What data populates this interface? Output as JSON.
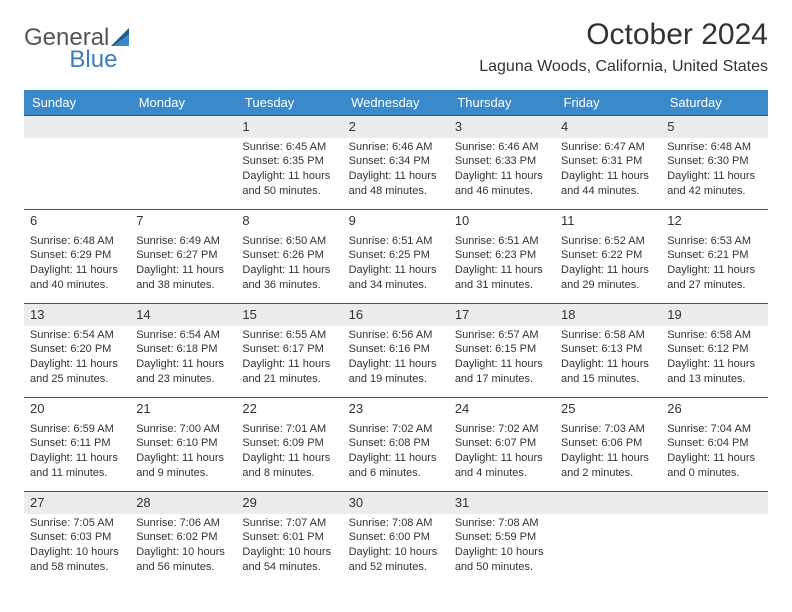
{
  "brand": {
    "left": "General",
    "right": "Blue"
  },
  "title": "October 2024",
  "location": "Laguna Woods, California, United States",
  "colors": {
    "header_bg": "#3a8acb",
    "header_text": "#ffffff",
    "rule": "#1f5b8c",
    "shade": "#ececec",
    "text": "#333333",
    "brand_blue": "#3a7cc2",
    "brand_gray": "#555555",
    "page_bg": "#ffffff"
  },
  "dayHeaders": [
    "Sunday",
    "Monday",
    "Tuesday",
    "Wednesday",
    "Thursday",
    "Friday",
    "Saturday"
  ],
  "firstWeekday": 2,
  "daysInMonth": 31,
  "days": {
    "1": {
      "sunrise": "6:45 AM",
      "sunset": "6:35 PM",
      "daylight": "11 hours and 50 minutes."
    },
    "2": {
      "sunrise": "6:46 AM",
      "sunset": "6:34 PM",
      "daylight": "11 hours and 48 minutes."
    },
    "3": {
      "sunrise": "6:46 AM",
      "sunset": "6:33 PM",
      "daylight": "11 hours and 46 minutes."
    },
    "4": {
      "sunrise": "6:47 AM",
      "sunset": "6:31 PM",
      "daylight": "11 hours and 44 minutes."
    },
    "5": {
      "sunrise": "6:48 AM",
      "sunset": "6:30 PM",
      "daylight": "11 hours and 42 minutes."
    },
    "6": {
      "sunrise": "6:48 AM",
      "sunset": "6:29 PM",
      "daylight": "11 hours and 40 minutes."
    },
    "7": {
      "sunrise": "6:49 AM",
      "sunset": "6:27 PM",
      "daylight": "11 hours and 38 minutes."
    },
    "8": {
      "sunrise": "6:50 AM",
      "sunset": "6:26 PM",
      "daylight": "11 hours and 36 minutes."
    },
    "9": {
      "sunrise": "6:51 AM",
      "sunset": "6:25 PM",
      "daylight": "11 hours and 34 minutes."
    },
    "10": {
      "sunrise": "6:51 AM",
      "sunset": "6:23 PM",
      "daylight": "11 hours and 31 minutes."
    },
    "11": {
      "sunrise": "6:52 AM",
      "sunset": "6:22 PM",
      "daylight": "11 hours and 29 minutes."
    },
    "12": {
      "sunrise": "6:53 AM",
      "sunset": "6:21 PM",
      "daylight": "11 hours and 27 minutes."
    },
    "13": {
      "sunrise": "6:54 AM",
      "sunset": "6:20 PM",
      "daylight": "11 hours and 25 minutes."
    },
    "14": {
      "sunrise": "6:54 AM",
      "sunset": "6:18 PM",
      "daylight": "11 hours and 23 minutes."
    },
    "15": {
      "sunrise": "6:55 AM",
      "sunset": "6:17 PM",
      "daylight": "11 hours and 21 minutes."
    },
    "16": {
      "sunrise": "6:56 AM",
      "sunset": "6:16 PM",
      "daylight": "11 hours and 19 minutes."
    },
    "17": {
      "sunrise": "6:57 AM",
      "sunset": "6:15 PM",
      "daylight": "11 hours and 17 minutes."
    },
    "18": {
      "sunrise": "6:58 AM",
      "sunset": "6:13 PM",
      "daylight": "11 hours and 15 minutes."
    },
    "19": {
      "sunrise": "6:58 AM",
      "sunset": "6:12 PM",
      "daylight": "11 hours and 13 minutes."
    },
    "20": {
      "sunrise": "6:59 AM",
      "sunset": "6:11 PM",
      "daylight": "11 hours and 11 minutes."
    },
    "21": {
      "sunrise": "7:00 AM",
      "sunset": "6:10 PM",
      "daylight": "11 hours and 9 minutes."
    },
    "22": {
      "sunrise": "7:01 AM",
      "sunset": "6:09 PM",
      "daylight": "11 hours and 8 minutes."
    },
    "23": {
      "sunrise": "7:02 AM",
      "sunset": "6:08 PM",
      "daylight": "11 hours and 6 minutes."
    },
    "24": {
      "sunrise": "7:02 AM",
      "sunset": "6:07 PM",
      "daylight": "11 hours and 4 minutes."
    },
    "25": {
      "sunrise": "7:03 AM",
      "sunset": "6:06 PM",
      "daylight": "11 hours and 2 minutes."
    },
    "26": {
      "sunrise": "7:04 AM",
      "sunset": "6:04 PM",
      "daylight": "11 hours and 0 minutes."
    },
    "27": {
      "sunrise": "7:05 AM",
      "sunset": "6:03 PM",
      "daylight": "10 hours and 58 minutes."
    },
    "28": {
      "sunrise": "7:06 AM",
      "sunset": "6:02 PM",
      "daylight": "10 hours and 56 minutes."
    },
    "29": {
      "sunrise": "7:07 AM",
      "sunset": "6:01 PM",
      "daylight": "10 hours and 54 minutes."
    },
    "30": {
      "sunrise": "7:08 AM",
      "sunset": "6:00 PM",
      "daylight": "10 hours and 52 minutes."
    },
    "31": {
      "sunrise": "7:08 AM",
      "sunset": "5:59 PM",
      "daylight": "10 hours and 50 minutes."
    }
  },
  "labels": {
    "sunrise": "Sunrise: ",
    "sunset": "Sunset: ",
    "daylight": "Daylight: "
  }
}
